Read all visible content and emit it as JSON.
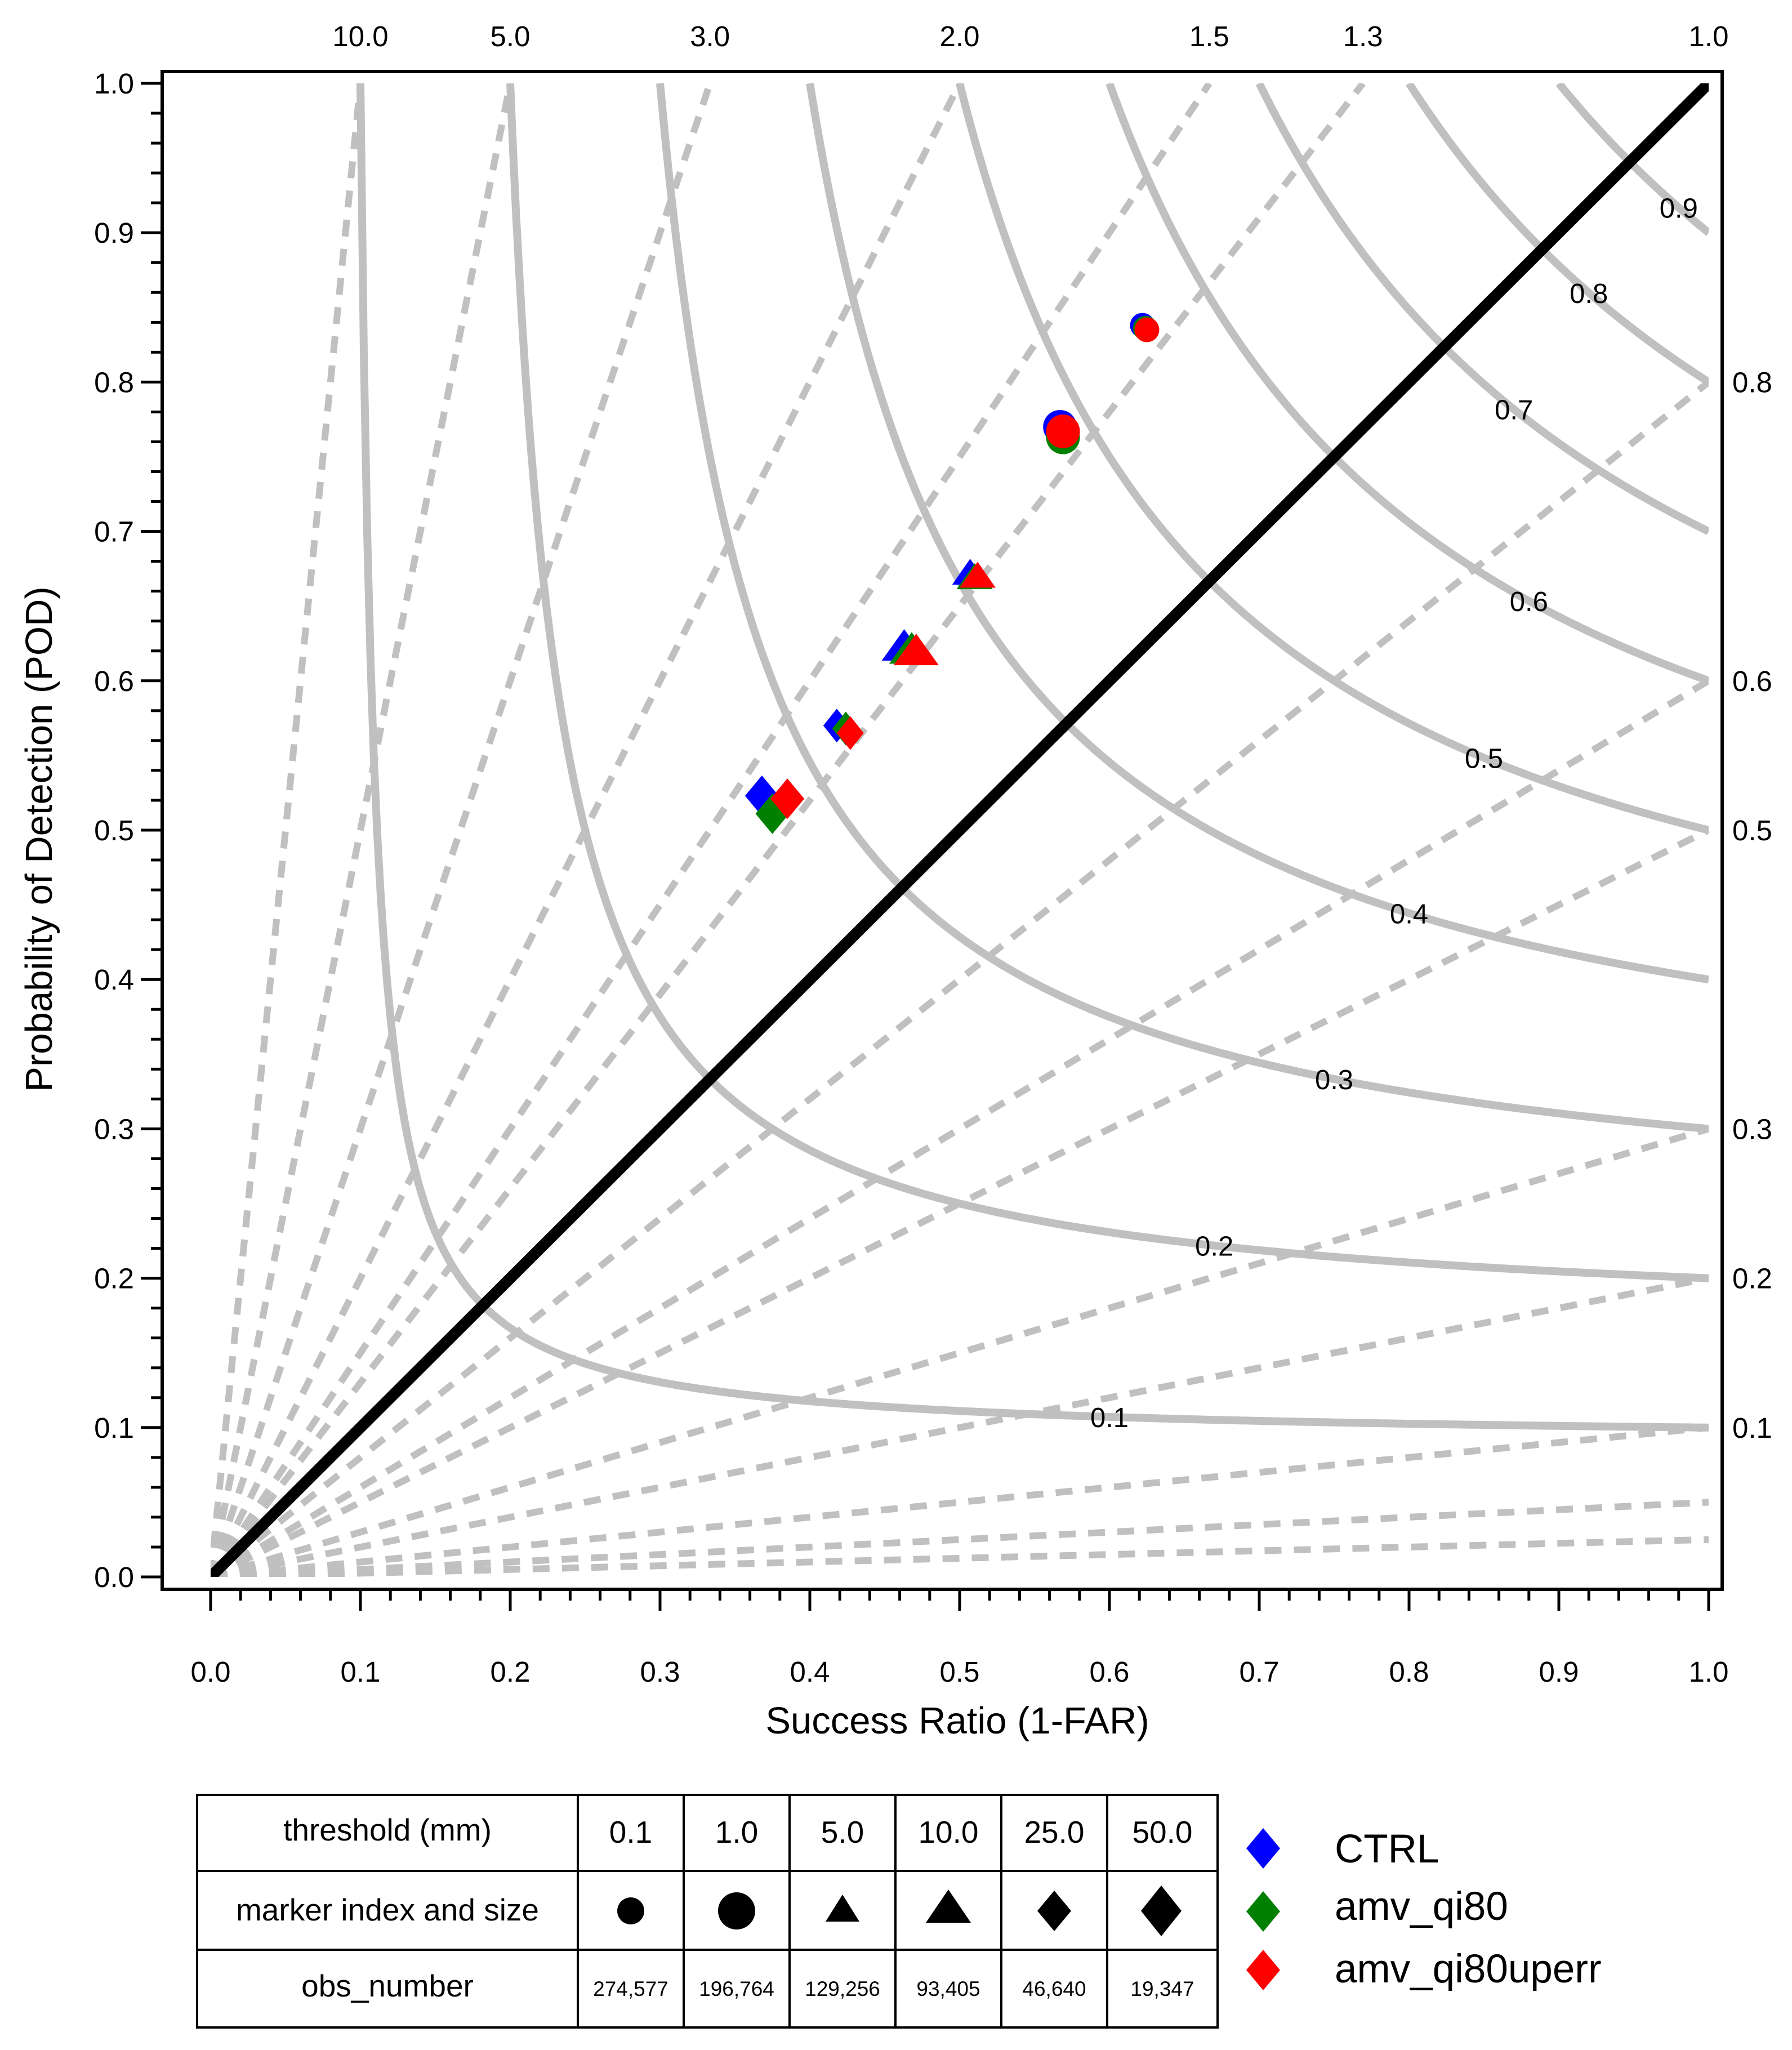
{
  "chart_data": {
    "type": "scatter",
    "subtype": "performance-diagram",
    "xlabel": "Success Ratio (1-FAR)",
    "ylabel": "Probability of Detection (POD)",
    "xlim": [
      0,
      1
    ],
    "ylim": [
      0,
      1
    ],
    "x_ticks": [
      "0.0",
      "0.1",
      "0.2",
      "0.3",
      "0.4",
      "0.5",
      "0.6",
      "0.7",
      "0.8",
      "0.9",
      "1.0"
    ],
    "y_ticks": [
      "0.0",
      "0.1",
      "0.2",
      "0.3",
      "0.4",
      "0.5",
      "0.6",
      "0.7",
      "0.8",
      "0.9",
      "1.0"
    ],
    "bias_lines": [
      {
        "value": 10.0,
        "label": "10.0",
        "label_side": "top"
      },
      {
        "value": 5.0,
        "label": "5.0",
        "label_side": "top"
      },
      {
        "value": 3.0,
        "label": "3.0",
        "label_side": "top"
      },
      {
        "value": 2.0,
        "label": "2.0",
        "label_side": "top"
      },
      {
        "value": 1.5,
        "label": "1.5",
        "label_side": "top"
      },
      {
        "value": 1.3,
        "label": "1.3",
        "label_side": "top"
      },
      {
        "value": 1.0,
        "label": "1.0",
        "label_side": "top"
      },
      {
        "value": 0.8,
        "label": "0.8",
        "label_side": "right"
      },
      {
        "value": 0.6,
        "label": "0.6",
        "label_side": "right"
      },
      {
        "value": 0.5,
        "label": "0.5",
        "label_side": "right"
      },
      {
        "value": 0.3,
        "label": "0.3",
        "label_side": "right"
      },
      {
        "value": 0.2,
        "label": "0.2",
        "label_side": "right"
      },
      {
        "value": 0.1,
        "label": "0.1",
        "label_side": "right"
      }
    ],
    "extra_bias_lines": [
      0.05,
      0.025
    ],
    "csi_lines": [
      {
        "value": 0.1,
        "label": "0.1",
        "label_x": 0.6
      },
      {
        "value": 0.2,
        "label": "0.2",
        "label_x": 0.67
      },
      {
        "value": 0.3,
        "label": "0.3",
        "label_x": 0.75
      },
      {
        "value": 0.4,
        "label": "0.4",
        "label_x": 0.8
      },
      {
        "value": 0.5,
        "label": "0.5",
        "label_x": 0.85
      },
      {
        "value": 0.6,
        "label": "0.6",
        "label_x": 0.88
      },
      {
        "value": 0.7,
        "label": "0.7",
        "label_x": 0.87
      },
      {
        "value": 0.8,
        "label": "0.8",
        "label_x": 0.92
      },
      {
        "value": 0.9,
        "label": "0.9",
        "label_x": 0.98
      }
    ],
    "thresholds": [
      "0.1",
      "1.0",
      "5.0",
      "10.0",
      "25.0",
      "50.0"
    ],
    "series": [
      {
        "name": "CTRL",
        "color": "#0000ff",
        "points": [
          {
            "threshold": "0.1",
            "x": 0.622,
            "y": 0.838
          },
          {
            "threshold": "1.0",
            "x": 0.567,
            "y": 0.77
          },
          {
            "threshold": "5.0",
            "x": 0.507,
            "y": 0.673
          },
          {
            "threshold": "10.0",
            "x": 0.463,
            "y": 0.624
          },
          {
            "threshold": "25.0",
            "x": 0.418,
            "y": 0.57
          },
          {
            "threshold": "50.0",
            "x": 0.368,
            "y": 0.523
          }
        ]
      },
      {
        "name": "amv_qi80",
        "color": "#008000",
        "points": [
          {
            "threshold": "0.1",
            "x": 0.624,
            "y": 0.836
          },
          {
            "threshold": "1.0",
            "x": 0.569,
            "y": 0.763
          },
          {
            "threshold": "5.0",
            "x": 0.51,
            "y": 0.67
          },
          {
            "threshold": "10.0",
            "x": 0.468,
            "y": 0.622
          },
          {
            "threshold": "25.0",
            "x": 0.424,
            "y": 0.568
          },
          {
            "threshold": "50.0",
            "x": 0.375,
            "y": 0.511
          }
        ]
      },
      {
        "name": "amv_qi80uperr",
        "color": "#ff0000",
        "points": [
          {
            "threshold": "0.1",
            "x": 0.625,
            "y": 0.835
          },
          {
            "threshold": "1.0",
            "x": 0.569,
            "y": 0.767
          },
          {
            "threshold": "5.0",
            "x": 0.512,
            "y": 0.671
          },
          {
            "threshold": "10.0",
            "x": 0.471,
            "y": 0.621
          },
          {
            "threshold": "25.0",
            "x": 0.427,
            "y": 0.565
          },
          {
            "threshold": "50.0",
            "x": 0.385,
            "y": 0.521
          }
        ]
      }
    ],
    "marker_by_threshold": {
      "0.1": {
        "shape": "circle",
        "size": "small"
      },
      "1.0": {
        "shape": "circle",
        "size": "large"
      },
      "5.0": {
        "shape": "triangle",
        "size": "small"
      },
      "10.0": {
        "shape": "triangle",
        "size": "large"
      },
      "25.0": {
        "shape": "diamond",
        "size": "small"
      },
      "50.0": {
        "shape": "diamond",
        "size": "large"
      }
    }
  },
  "table": {
    "row_labels": [
      "threshold (mm)",
      "marker index and size",
      "obs_number"
    ],
    "thresholds": [
      "0.1",
      "1.0",
      "5.0",
      "10.0",
      "25.0",
      "50.0"
    ],
    "obs_numbers": [
      "274,577",
      "196,764",
      "129,256",
      "93,405",
      "46,640",
      "19,347"
    ]
  },
  "legend": [
    {
      "label": "CTRL",
      "color": "#0000ff"
    },
    {
      "label": "amv_qi80",
      "color": "#008000"
    },
    {
      "label": "amv_qi80uperr",
      "color": "#ff0000"
    }
  ],
  "colors": {
    "reference_lines": "#c0c0c0",
    "perfect_bias": "#000000",
    "axis": "#000000"
  }
}
